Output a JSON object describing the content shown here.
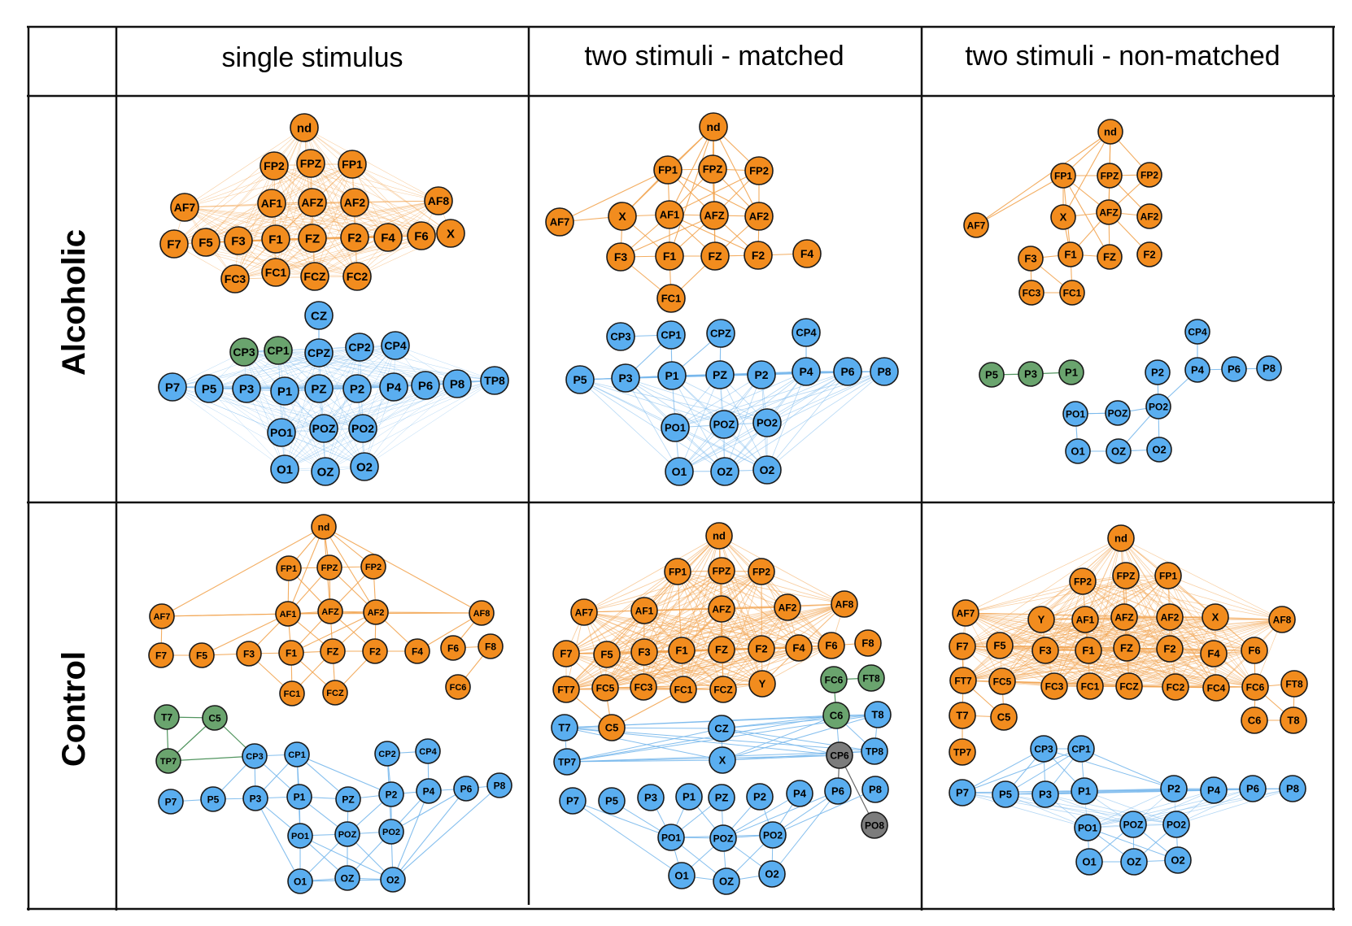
{
  "header": {
    "columns": [
      "single stimulus",
      "two stimuli - matched",
      "two stimuli - non-matched"
    ],
    "rows": [
      "Alcoholic",
      "Control"
    ]
  },
  "colors": {
    "frontal": "#f28c1e",
    "posterior": "#5aaef0",
    "green": "#6aa46e",
    "gray": "#7c7c7c",
    "edge_frontal": "#f2a450",
    "edge_posterior": "#78b8ec",
    "edge_green": "#3e8a4e",
    "edge_gray": "#555555"
  },
  "panels": [
    {
      "id": "alcoholic-single",
      "row": "Alcoholic",
      "column": "single stimulus",
      "groups": [
        {
          "color": "frontal",
          "nodes": [
            "nd",
            "FP2",
            "FPZ",
            "FP1",
            "AF7",
            "AF1",
            "AFZ",
            "AF2",
            "AF8",
            "F7",
            "F5",
            "F3",
            "F1",
            "FZ",
            "F2",
            "F4",
            "F6",
            "X",
            "FC3",
            "FC1",
            "FCZ",
            "FC2"
          ]
        },
        {
          "color": "green",
          "nodes": [
            "CP3",
            "CP1"
          ]
        },
        {
          "color": "posterior",
          "nodes": [
            "CZ",
            "CPZ",
            "CP2",
            "CP4",
            "P7",
            "P5",
            "P3",
            "P1",
            "PZ",
            "P2",
            "P4",
            "P6",
            "P8",
            "TP8",
            "PO1",
            "POZ",
            "PO2",
            "O1",
            "OZ",
            "O2"
          ]
        }
      ]
    },
    {
      "id": "alcoholic-matched",
      "row": "Alcoholic",
      "column": "two stimuli - matched",
      "groups": [
        {
          "color": "frontal",
          "nodes": [
            "nd",
            "FP1",
            "FPZ",
            "FP2",
            "AF7",
            "X",
            "AF1",
            "AFZ",
            "AF2",
            "F3",
            "F1",
            "FZ",
            "F2",
            "F4",
            "FC1"
          ]
        },
        {
          "color": "posterior",
          "nodes": [
            "CP3",
            "CP1",
            "CPZ",
            "CP4",
            "P5",
            "P3",
            "P1",
            "PZ",
            "P2",
            "P4",
            "P6",
            "P8",
            "PO1",
            "POZ",
            "PO2",
            "O1",
            "OZ",
            "O2"
          ]
        }
      ]
    },
    {
      "id": "alcoholic-nonmatched",
      "row": "Alcoholic",
      "column": "two stimuli - non-matched",
      "groups": [
        {
          "color": "frontal",
          "nodes": [
            "nd",
            "FP1",
            "FPZ",
            "FP2",
            "AF7",
            "X",
            "AFZ",
            "AF2",
            "F3",
            "F1",
            "FZ",
            "F2",
            "FC3",
            "FC1"
          ]
        },
        {
          "color": "green",
          "nodes": [
            "P5",
            "P3",
            "P1"
          ]
        },
        {
          "color": "posterior",
          "nodes": [
            "CP4",
            "P2",
            "P4",
            "P6",
            "P8",
            "PO1",
            "POZ",
            "PO2",
            "O1",
            "OZ",
            "O2"
          ]
        }
      ]
    },
    {
      "id": "control-single",
      "row": "Control",
      "column": "single stimulus",
      "groups": [
        {
          "color": "frontal",
          "nodes": [
            "nd",
            "FP1",
            "FPZ",
            "FP2",
            "AF7",
            "AF1",
            "AFZ",
            "AF2",
            "AF8",
            "F7",
            "F5",
            "F3",
            "F1",
            "FZ",
            "F2",
            "F4",
            "F6",
            "F8",
            "FC1",
            "FCZ",
            "FC6"
          ]
        },
        {
          "color": "green",
          "nodes": [
            "T7",
            "C5",
            "TP7"
          ]
        },
        {
          "color": "posterior",
          "nodes": [
            "CP3",
            "CP1",
            "CP2",
            "CP4",
            "P7",
            "P5",
            "P3",
            "P1",
            "PZ",
            "P2",
            "P4",
            "P6",
            "P8",
            "PO1",
            "POZ",
            "PO2",
            "O1",
            "OZ",
            "O2"
          ]
        }
      ]
    },
    {
      "id": "control-matched",
      "row": "Control",
      "column": "two stimuli - matched",
      "groups": [
        {
          "color": "frontal",
          "nodes": [
            "nd",
            "FP1",
            "FPZ",
            "FP2",
            "AF7",
            "AF1",
            "AFZ",
            "AF2",
            "AF8",
            "F7",
            "F5",
            "F3",
            "F1",
            "FZ",
            "F2",
            "F4",
            "F6",
            "F8",
            "FT7",
            "FC5",
            "FC3",
            "FC1",
            "FCZ",
            "Y",
            "C5"
          ]
        },
        {
          "color": "green",
          "nodes": [
            "FC6",
            "FT8",
            "C6"
          ]
        },
        {
          "color": "gray",
          "nodes": [
            "CP6",
            "PO8"
          ]
        },
        {
          "color": "posterior",
          "nodes": [
            "T7",
            "CZ",
            "T8",
            "TP7",
            "X",
            "TP8",
            "P7",
            "P5",
            "P3",
            "P1",
            "PZ",
            "P2",
            "P4",
            "P6",
            "P8",
            "PO1",
            "POZ",
            "PO2",
            "O1",
            "OZ",
            "O2"
          ]
        }
      ]
    },
    {
      "id": "control-nonmatched",
      "row": "Control",
      "column": "two stimuli - non-matched",
      "groups": [
        {
          "color": "frontal",
          "nodes": [
            "nd",
            "FP2",
            "FPZ",
            "FP1",
            "AF7",
            "Y",
            "AF1",
            "AFZ",
            "AF2",
            "X",
            "AF8",
            "F7",
            "F5",
            "F3",
            "F1",
            "FZ",
            "F2",
            "F4",
            "F6",
            "FT7",
            "FC5",
            "FC3",
            "FC1",
            "FCZ",
            "FC2",
            "FC4",
            "FC6",
            "FT8",
            "T7",
            "C5",
            "C6",
            "T8",
            "TP7"
          ]
        },
        {
          "color": "posterior",
          "nodes": [
            "CP3",
            "CP1",
            "P7",
            "P5",
            "P3",
            "P1",
            "P2",
            "P4",
            "P6",
            "P8",
            "PO1",
            "POZ",
            "PO2",
            "O1",
            "OZ",
            "O2"
          ]
        }
      ]
    }
  ]
}
